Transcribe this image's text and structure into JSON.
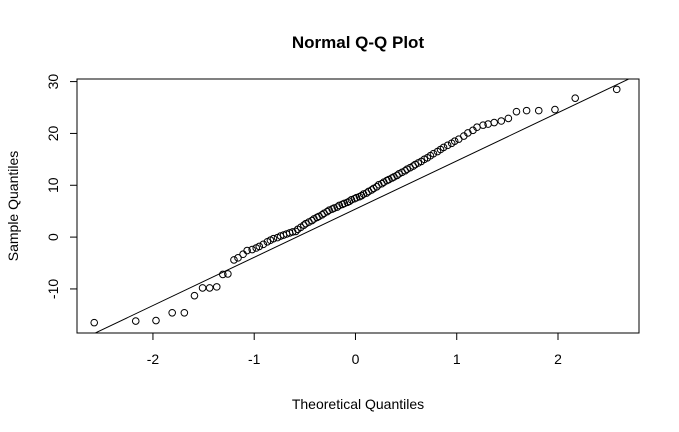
{
  "chart_data": {
    "type": "scatter",
    "title": "Normal Q-Q Plot",
    "xlabel": "Theoretical Quantiles",
    "ylabel": "Sample Quantiles",
    "xlim": [
      -2.75,
      2.8
    ],
    "ylim": [
      -18.5,
      30.5
    ],
    "x_ticks": [
      -2,
      -1,
      0,
      1,
      2
    ],
    "y_ticks": [
      -10,
      0,
      10,
      20,
      30
    ],
    "x_tick_labels": [
      "-2",
      "-1",
      "0",
      "1",
      "2"
    ],
    "y_tick_labels": [
      "-10",
      "0",
      "10",
      "20",
      "30"
    ],
    "grid": false,
    "box": true,
    "colors": {
      "points": "#000000",
      "line": "#000000",
      "background": "#ffffff"
    },
    "reference_line": {
      "intercept": 5.4,
      "slope": 9.3
    },
    "points": {
      "x": [
        -2.58,
        -2.17,
        -1.97,
        -1.81,
        -1.69,
        -1.59,
        -1.51,
        -1.44,
        -1.37,
        -1.31,
        -1.26,
        -1.2,
        -1.16,
        -1.11,
        -1.07,
        -1.02,
        -0.98,
        -0.95,
        -0.91,
        -0.87,
        -0.84,
        -0.81,
        -0.77,
        -0.74,
        -0.71,
        -0.68,
        -0.65,
        -0.62,
        -0.59,
        -0.57,
        -0.54,
        -0.51,
        -0.49,
        -0.46,
        -0.43,
        -0.41,
        -0.38,
        -0.36,
        -0.33,
        -0.31,
        -0.28,
        -0.26,
        -0.23,
        -0.21,
        -0.18,
        -0.16,
        -0.13,
        -0.11,
        -0.08,
        -0.06,
        -0.04,
        -0.01,
        0.01,
        0.04,
        0.06,
        0.08,
        0.11,
        0.13,
        0.16,
        0.18,
        0.21,
        0.23,
        0.26,
        0.28,
        0.31,
        0.33,
        0.36,
        0.38,
        0.41,
        0.43,
        0.46,
        0.49,
        0.51,
        0.54,
        0.57,
        0.59,
        0.62,
        0.65,
        0.68,
        0.71,
        0.74,
        0.77,
        0.81,
        0.84,
        0.87,
        0.91,
        0.95,
        0.98,
        1.02,
        1.07,
        1.11,
        1.16,
        1.2,
        1.26,
        1.31,
        1.37,
        1.44,
        1.51,
        1.59,
        1.69,
        1.81,
        1.97,
        2.17,
        2.58
      ],
      "y": [
        -16.5,
        -16.2,
        -16.1,
        -14.6,
        -14.6,
        -11.3,
        -9.8,
        -9.8,
        -9.6,
        -7.2,
        -7.1,
        -4.4,
        -4.0,
        -3.3,
        -2.6,
        -2.4,
        -2.1,
        -1.8,
        -1.4,
        -0.9,
        -0.6,
        -0.3,
        -0.1,
        0.2,
        0.4,
        0.6,
        0.8,
        1.0,
        1.1,
        1.5,
        1.9,
        2.3,
        2.6,
        2.9,
        3.2,
        3.5,
        3.8,
        4.0,
        4.3,
        4.6,
        4.9,
        5.2,
        5.4,
        5.6,
        5.8,
        6.1,
        6.3,
        6.5,
        6.7,
        6.9,
        7.2,
        7.4,
        7.6,
        7.8,
        8.0,
        8.3,
        8.5,
        8.8,
        9.1,
        9.4,
        9.7,
        10.1,
        10.3,
        10.6,
        10.9,
        11.1,
        11.4,
        11.6,
        11.9,
        12.2,
        12.5,
        12.8,
        13.1,
        13.4,
        13.7,
        14.0,
        14.3,
        14.6,
        15.0,
        15.3,
        15.7,
        16.1,
        16.5,
        16.9,
        17.3,
        17.7,
        18.1,
        18.5,
        18.9,
        19.5,
        20.1,
        20.6,
        21.2,
        21.6,
        21.8,
        22.1,
        22.4,
        22.9,
        24.2,
        24.4,
        24.4,
        24.6,
        26.8,
        28.5
      ]
    }
  }
}
